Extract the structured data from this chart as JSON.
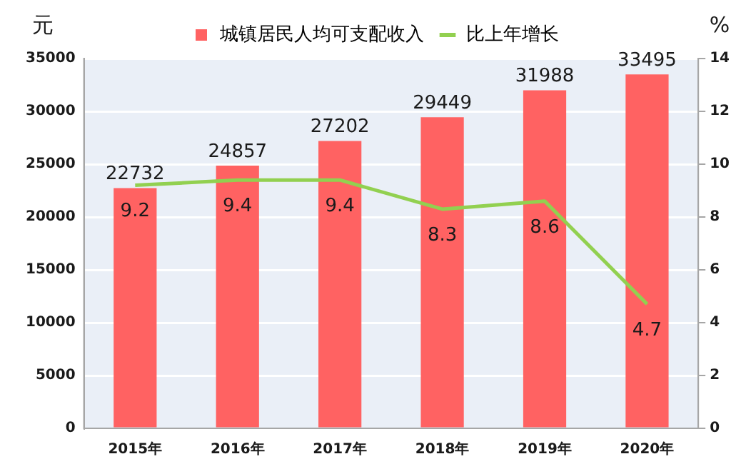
{
  "chart_data": {
    "type": "bar",
    "ylabel": "元",
    "y2label": "%",
    "categories": [
      "2015年",
      "2016年",
      "2017年",
      "2018年",
      "2019年",
      "2020年"
    ],
    "series": [
      {
        "name": "城镇居民人均可支配收入",
        "color": "#ff6262",
        "values": [
          22732,
          24857,
          27202,
          29449,
          31988,
          33495
        ]
      },
      {
        "name": "比上年增长",
        "type": "line",
        "axis": "y2",
        "color": "#92d050",
        "values": [
          9.2,
          9.4,
          9.4,
          8.3,
          8.6,
          4.7
        ]
      }
    ],
    "ylim": [
      0,
      35000
    ],
    "yticks": [
      0,
      5000,
      10000,
      15000,
      20000,
      25000,
      30000,
      35000
    ],
    "y2lim": [
      0,
      14
    ],
    "y2ticks": [
      0,
      2,
      4,
      6,
      8,
      10,
      12,
      14
    ],
    "grid": "y",
    "legend": "top",
    "marker": "none",
    "data_labels": true
  }
}
